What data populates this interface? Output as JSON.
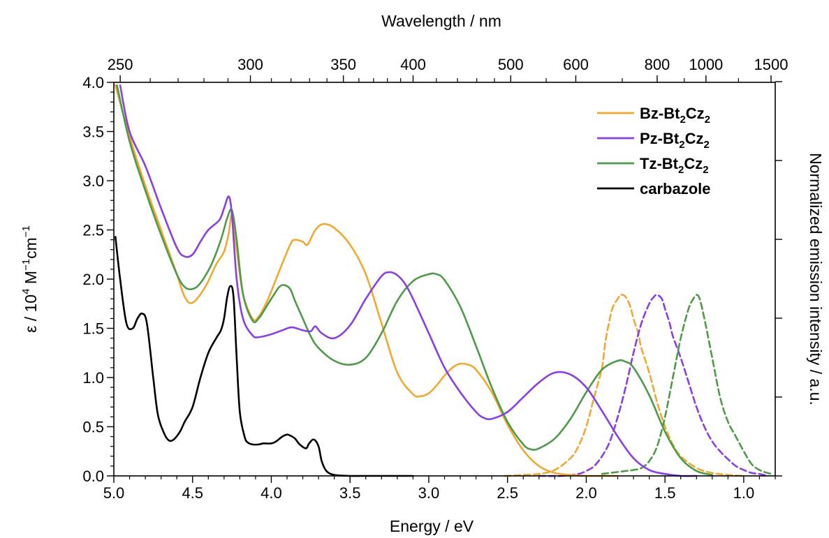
{
  "chart_data": {
    "type": "line",
    "title": "",
    "xlabel": "Energy  /  eV",
    "x2label": "Wavelength  /  nm",
    "ylabel": {
      "pre": "ε  /  10",
      "sup1": "4",
      "mid": " M",
      "sup2": "−1",
      "mid2": "cm",
      "sup3": "−1"
    },
    "y2label": "Normalized emission intensity  /  a.u.",
    "xlim": [
      5.0,
      0.8
    ],
    "ylim": [
      0,
      4.0
    ],
    "x_ticks": [
      "5.0",
      "4.5",
      "4.0",
      "3.5",
      "3.0",
      "2.5",
      "2.0",
      "1.5",
      "1.0"
    ],
    "y_ticks": [
      "0.0",
      "0.5",
      "1.0",
      "1.5",
      "2.0",
      "2.5",
      "3.0",
      "3.5",
      "4.0"
    ],
    "x2_ticks": [
      "250",
      "300",
      "350",
      "400",
      "500",
      "600",
      "800",
      "1000",
      "1500"
    ],
    "grid": false,
    "legend_position": "top-right",
    "legend": [
      {
        "label": "Bz-Bt",
        "sub1": "2",
        "label2": "Cz",
        "sub2": "2",
        "color": "#F0A830",
        "style": "solid"
      },
      {
        "label": "Pz-Bt",
        "sub1": "2",
        "label2": "Cz",
        "sub2": "2",
        "color": "#8A3FE0",
        "style": "solid"
      },
      {
        "label": "Tz-Bt",
        "sub1": "2",
        "label2": "Cz",
        "sub2": "2",
        "color": "#4E9A48",
        "style": "solid"
      },
      {
        "label": "carbazole",
        "sub1": "",
        "label2": "",
        "sub2": "",
        "color": "#000000",
        "style": "solid"
      }
    ],
    "series": [
      {
        "name": "Bz-Bt2Cz2",
        "kind": "absorption",
        "color": "#F0A830",
        "x": [
          4.99,
          4.9,
          4.8,
          4.7,
          4.6,
          4.55,
          4.5,
          4.42,
          4.35,
          4.3,
          4.27,
          4.25,
          4.22,
          4.18,
          4.12,
          4.08,
          4.02,
          3.95,
          3.88,
          3.85,
          3.8,
          3.77,
          3.72,
          3.67,
          3.6,
          3.5,
          3.4,
          3.3,
          3.2,
          3.1,
          3.05,
          3.0,
          2.95,
          2.9,
          2.85,
          2.8,
          2.75,
          2.7,
          2.6,
          2.5,
          2.4,
          2.3,
          2.2,
          2.1,
          2.0,
          1.9,
          1.8
        ],
        "y": [
          3.97,
          3.45,
          2.95,
          2.5,
          2.05,
          1.82,
          1.76,
          1.92,
          2.15,
          2.28,
          2.47,
          2.65,
          2.3,
          1.85,
          1.6,
          1.62,
          1.8,
          2.08,
          2.35,
          2.4,
          2.38,
          2.35,
          2.5,
          2.56,
          2.52,
          2.35,
          2.05,
          1.55,
          1.05,
          0.83,
          0.81,
          0.84,
          0.92,
          1.02,
          1.1,
          1.14,
          1.13,
          1.08,
          0.85,
          0.52,
          0.26,
          0.1,
          0.03,
          0.01,
          0.0,
          0.0,
          0.0
        ]
      },
      {
        "name": "Pz-Bt2Cz2",
        "kind": "absorption",
        "color": "#8A3FE0",
        "x": [
          4.96,
          4.9,
          4.8,
          4.7,
          4.6,
          4.55,
          4.5,
          4.45,
          4.4,
          4.33,
          4.3,
          4.27,
          4.25,
          4.22,
          4.18,
          4.12,
          4.08,
          4.0,
          3.93,
          3.87,
          3.8,
          3.75,
          3.72,
          3.68,
          3.6,
          3.5,
          3.4,
          3.3,
          3.25,
          3.2,
          3.15,
          3.1,
          3.0,
          2.9,
          2.8,
          2.7,
          2.65,
          2.6,
          2.5,
          2.4,
          2.3,
          2.2,
          2.1,
          2.0,
          1.9,
          1.8,
          1.7,
          1.6,
          1.5,
          1.4,
          1.3
        ],
        "y": [
          3.97,
          3.5,
          3.15,
          2.72,
          2.32,
          2.23,
          2.25,
          2.38,
          2.5,
          2.6,
          2.72,
          2.84,
          2.65,
          2.0,
          1.6,
          1.43,
          1.41,
          1.44,
          1.48,
          1.51,
          1.48,
          1.47,
          1.52,
          1.45,
          1.4,
          1.53,
          1.8,
          2.03,
          2.07,
          2.04,
          1.95,
          1.8,
          1.45,
          1.1,
          0.85,
          0.65,
          0.59,
          0.58,
          0.65,
          0.8,
          0.95,
          1.05,
          1.03,
          0.9,
          0.66,
          0.4,
          0.18,
          0.06,
          0.02,
          0.0,
          0.0
        ]
      },
      {
        "name": "Tz-Bt2Cz2",
        "kind": "absorption",
        "color": "#4E9A48",
        "x": [
          4.98,
          4.9,
          4.8,
          4.7,
          4.6,
          4.55,
          4.5,
          4.45,
          4.38,
          4.32,
          4.28,
          4.25,
          4.22,
          4.18,
          4.12,
          4.08,
          4.02,
          3.98,
          3.95,
          3.92,
          3.88,
          3.85,
          3.8,
          3.75,
          3.7,
          3.6,
          3.5,
          3.4,
          3.3,
          3.2,
          3.1,
          3.0,
          2.95,
          2.9,
          2.8,
          2.7,
          2.6,
          2.5,
          2.4,
          2.35,
          2.3,
          2.2,
          2.1,
          2.0,
          1.9,
          1.8,
          1.75,
          1.7,
          1.6,
          1.5,
          1.4,
          1.3,
          1.2
        ],
        "y": [
          3.97,
          3.4,
          2.9,
          2.45,
          2.05,
          1.92,
          1.9,
          1.96,
          2.15,
          2.4,
          2.62,
          2.7,
          2.4,
          1.85,
          1.58,
          1.6,
          1.75,
          1.85,
          1.92,
          1.94,
          1.9,
          1.78,
          1.6,
          1.42,
          1.3,
          1.17,
          1.13,
          1.2,
          1.45,
          1.78,
          1.98,
          2.05,
          2.05,
          1.99,
          1.72,
          1.32,
          0.9,
          0.55,
          0.32,
          0.27,
          0.28,
          0.38,
          0.58,
          0.85,
          1.08,
          1.17,
          1.16,
          1.1,
          0.82,
          0.45,
          0.18,
          0.05,
          0.01
        ]
      },
      {
        "name": "carbazole",
        "kind": "absorption",
        "color": "#000000",
        "x": [
          4.99,
          4.96,
          4.92,
          4.88,
          4.85,
          4.82,
          4.79,
          4.75,
          4.72,
          4.68,
          4.65,
          4.62,
          4.58,
          4.55,
          4.5,
          4.45,
          4.4,
          4.35,
          4.32,
          4.3,
          4.28,
          4.26,
          4.24,
          4.22,
          4.2,
          4.17,
          4.15,
          4.12,
          4.08,
          4.05,
          4.0,
          3.97,
          3.93,
          3.9,
          3.88,
          3.85,
          3.82,
          3.78,
          3.76,
          3.73,
          3.7,
          3.68,
          3.65,
          3.6,
          3.5,
          3.4,
          3.1
        ],
        "y": [
          2.43,
          2.0,
          1.55,
          1.5,
          1.6,
          1.65,
          1.55,
          1.0,
          0.62,
          0.43,
          0.36,
          0.37,
          0.45,
          0.55,
          0.7,
          1.0,
          1.25,
          1.4,
          1.48,
          1.6,
          1.82,
          1.93,
          1.82,
          1.2,
          0.65,
          0.4,
          0.34,
          0.32,
          0.32,
          0.33,
          0.33,
          0.35,
          0.4,
          0.42,
          0.41,
          0.38,
          0.32,
          0.28,
          0.33,
          0.37,
          0.3,
          0.15,
          0.05,
          0.01,
          0.0,
          0.0,
          0.0
        ]
      },
      {
        "name": "Bz-Bt2Cz2",
        "kind": "emission",
        "color": "#F0A830",
        "x": [
          2.52,
          2.4,
          2.3,
          2.2,
          2.1,
          2.05,
          2.0,
          1.95,
          1.9,
          1.88,
          1.85,
          1.83,
          1.8,
          1.78,
          1.75,
          1.72,
          1.7,
          1.67,
          1.65,
          1.6,
          1.55,
          1.5,
          1.45,
          1.4,
          1.3,
          1.2,
          1.1,
          1.0
        ],
        "y": [
          0.0,
          0.01,
          0.02,
          0.06,
          0.18,
          0.3,
          0.5,
          0.8,
          1.1,
          1.35,
          1.6,
          1.72,
          1.8,
          1.84,
          1.82,
          1.72,
          1.6,
          1.45,
          1.3,
          1.05,
          0.75,
          0.5,
          0.32,
          0.2,
          0.08,
          0.03,
          0.01,
          0.0
        ]
      },
      {
        "name": "Pz-Bt2Cz2",
        "kind": "emission",
        "color": "#8A3FE0",
        "x": [
          2.3,
          2.15,
          2.05,
          2.0,
          1.95,
          1.9,
          1.85,
          1.8,
          1.75,
          1.7,
          1.65,
          1.6,
          1.57,
          1.55,
          1.52,
          1.5,
          1.47,
          1.45,
          1.4,
          1.35,
          1.3,
          1.25,
          1.2,
          1.15,
          1.1,
          1.05,
          1.0,
          0.95,
          0.9,
          0.85
        ],
        "y": [
          0.0,
          0.0,
          0.02,
          0.05,
          0.1,
          0.2,
          0.35,
          0.6,
          0.9,
          1.25,
          1.55,
          1.75,
          1.82,
          1.84,
          1.8,
          1.7,
          1.55,
          1.42,
          1.2,
          0.95,
          0.7,
          0.5,
          0.35,
          0.25,
          0.17,
          0.1,
          0.06,
          0.03,
          0.02,
          0.0
        ]
      },
      {
        "name": "Tz-Bt2Cz2",
        "kind": "emission",
        "color": "#4E9A48",
        "x": [
          1.9,
          1.8,
          1.75,
          1.7,
          1.65,
          1.6,
          1.55,
          1.5,
          1.45,
          1.4,
          1.35,
          1.32,
          1.3,
          1.28,
          1.25,
          1.2,
          1.15,
          1.1,
          1.05,
          1.0,
          0.95,
          0.9,
          0.85,
          0.82
        ],
        "y": [
          0.02,
          0.04,
          0.05,
          0.06,
          0.08,
          0.15,
          0.3,
          0.6,
          1.0,
          1.4,
          1.7,
          1.8,
          1.84,
          1.8,
          1.6,
          1.2,
          0.8,
          0.55,
          0.4,
          0.25,
          0.12,
          0.06,
          0.03,
          0.02
        ]
      }
    ]
  }
}
